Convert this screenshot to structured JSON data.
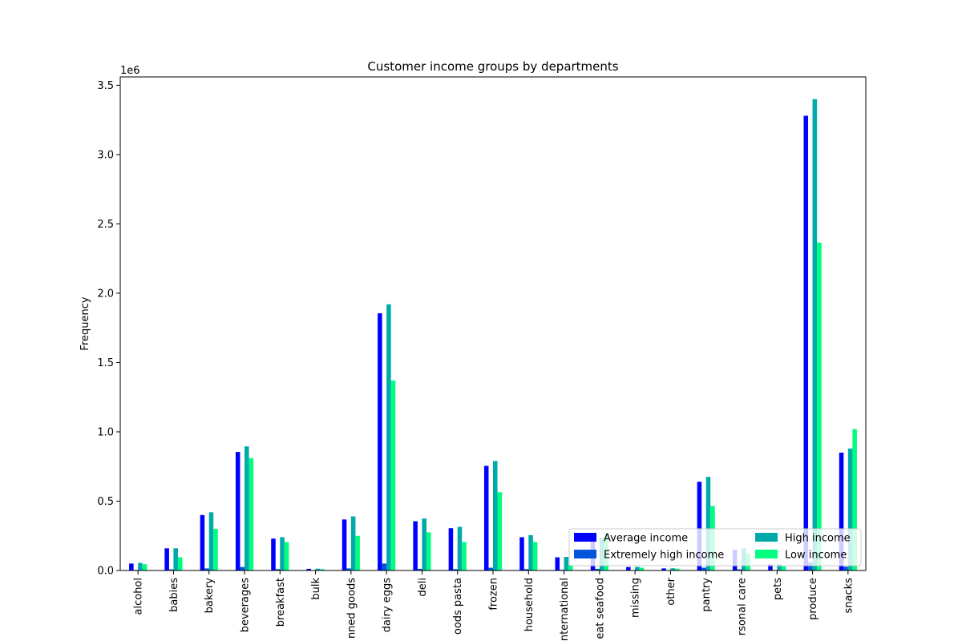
{
  "chart_data": {
    "type": "bar",
    "title": "Customer income groups by departments",
    "xlabel": "",
    "ylabel": "Frequency",
    "y_offset_label": "1e6",
    "ylim": [
      0,
      3.56
    ],
    "yticks": [
      0.0,
      0.5,
      1.0,
      1.5,
      2.0,
      2.5,
      3.0,
      3.5
    ],
    "ytick_labels": [
      "0.0",
      "0.5",
      "1.0",
      "1.5",
      "2.0",
      "2.5",
      "3.0",
      "3.5"
    ],
    "grid": false,
    "legend_placement": "lower-right",
    "categories": [
      "alcohol",
      "babies",
      "bakery",
      "beverages",
      "breakfast",
      "bulk",
      "canned goods",
      "dairy eggs",
      "deli",
      "dry goods pasta",
      "frozen",
      "household",
      "international",
      "meat seafood",
      "missing",
      "other",
      "pantry",
      "personal care",
      "pets",
      "produce",
      "snacks"
    ],
    "category_labels_visible": [
      "alcohol",
      "babies",
      "bakery",
      "beverages",
      "breakfast",
      "bulk",
      "nned goods",
      "dairy eggs",
      "deli",
      "oods pasta",
      "frozen",
      "household",
      "nternational",
      "eat seafood",
      "missing",
      "other",
      "pantry",
      "rsonal care",
      "pets",
      "produce",
      "snacks"
    ],
    "series": [
      {
        "name": "Average income",
        "color": "#0000ff",
        "values": [
          0.05,
          0.16,
          0.4,
          0.855,
          0.23,
          0.012,
          0.368,
          1.855,
          0.355,
          0.305,
          0.755,
          0.24,
          0.095,
          0.22,
          0.025,
          0.015,
          0.64,
          0.15,
          0.045,
          3.28,
          0.85
        ]
      },
      {
        "name": "Extremely high income",
        "color": "#0055dd",
        "values": [
          0.004,
          0.008,
          0.015,
          0.025,
          0.01,
          0.002,
          0.015,
          0.05,
          0.012,
          0.01,
          0.02,
          0.01,
          0.005,
          0.012,
          0.003,
          0.002,
          0.02,
          0.008,
          0.003,
          0.06,
          0.028
        ]
      },
      {
        "name": "High income",
        "color": "#00aaaa",
        "values": [
          0.055,
          0.16,
          0.42,
          0.895,
          0.24,
          0.013,
          0.39,
          1.92,
          0.375,
          0.315,
          0.79,
          0.255,
          0.098,
          0.235,
          0.026,
          0.016,
          0.675,
          0.16,
          0.046,
          3.4,
          0.88
        ]
      },
      {
        "name": "Low income",
        "color": "#00ff80",
        "values": [
          0.045,
          0.095,
          0.3,
          0.81,
          0.205,
          0.01,
          0.25,
          1.37,
          0.275,
          0.205,
          0.565,
          0.205,
          0.04,
          0.27,
          0.02,
          0.013,
          0.465,
          0.12,
          0.03,
          2.365,
          1.02
        ]
      }
    ]
  }
}
